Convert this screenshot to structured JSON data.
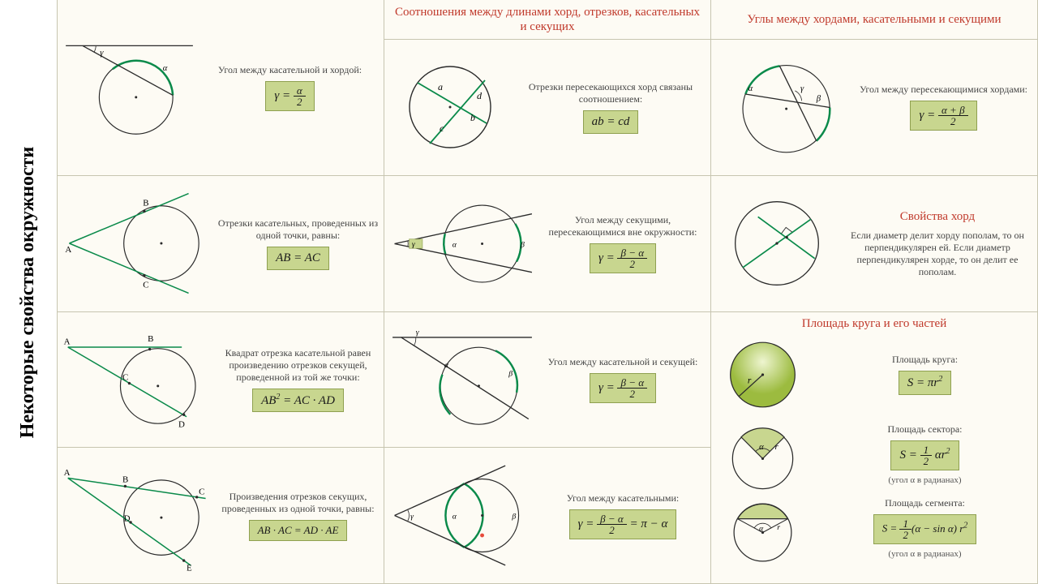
{
  "page_title": "Некоторые свойства окружности",
  "headers": {
    "col1": "Соотношения между длинами хорд, отрезков, касательных и секущих",
    "col2": "Углы между хордами, касательными и секущими",
    "col3_cell1_hdr": "",
    "chord_props": "Свойства хорд",
    "area": "Площадь круга и его частей"
  },
  "colors": {
    "accent": "#c0392b",
    "stroke": "#2a2a2a",
    "chord": "#0a8a4a",
    "fill": "#c8d68f",
    "grad1": "#d8e8a0",
    "grad2": "#8cb33a"
  },
  "r1c1": {
    "desc": "Отрезки пересекающихся хорд связаны соотношением:",
    "formula": "ab = cd",
    "labels": {
      "a": "a",
      "b": "b",
      "c": "c",
      "d": "d"
    }
  },
  "r1c2": {
    "desc": "Угол между пересекающимися хордами:",
    "f_n": "α + β",
    "f_d": "2",
    "gamma": "γ",
    "alpha": "α",
    "beta": "β"
  },
  "r1c3": {
    "desc": "Угол между касательной и хордой:",
    "f_n": "α",
    "f_d": "2",
    "gamma": "γ",
    "alpha": "α"
  },
  "r2c1": {
    "desc": "Отрезки касательных, проведенных из одной точки, равны:",
    "formula": "AB = AC",
    "A": "A",
    "B": "B",
    "C": "C"
  },
  "r2c2": {
    "desc": "Угол между секущими, пересекающимися вне окружности:",
    "f_n": "β − α",
    "f_d": "2",
    "gamma": "γ",
    "alpha": "α",
    "beta": "β"
  },
  "r2c3": {
    "desc": "Если диаметр делит хорду пополам, то он перпендикулярен ей. Если диаметр перпендикулярен хорде, то он делит ее пополам."
  },
  "r3c1": {
    "desc": "Квадрат отрезка касательной равен произведению отрезков секущей, проведенной из той же точки:",
    "formula_html": "AB<sup>2</sup> = AC · AD",
    "A": "A",
    "B": "B",
    "C": "C",
    "D": "D"
  },
  "r3c2": {
    "desc": "Угол между касательной и секущей:",
    "f_n": "β − α",
    "f_d": "2",
    "gamma": "γ",
    "alpha": "α",
    "beta": "β"
  },
  "r3c3": {
    "desc": "Площадь круга:",
    "formula_html": "S = πr<sup>2</sup>",
    "r": "r"
  },
  "r4c1": {
    "desc": "Произведения отрезков секущих, проведенных из одной точки, равны:",
    "formula": "AB · AC = AD · AE",
    "A": "A",
    "B": "B",
    "C": "C",
    "D": "D",
    "E": "E"
  },
  "r4c2": {
    "desc": "Угол между касательными:",
    "tail": " = π − α",
    "f_n": "β − α",
    "f_d": "2",
    "gamma": "γ",
    "alpha": "α",
    "beta": "β"
  },
  "r4c3_sector": {
    "desc": "Площадь сектора:",
    "r": "r",
    "alpha": "α",
    "note": "(угол α в радианах)",
    "pre": "S = ",
    "f_n": "1",
    "f_d": "2",
    "post": " αr<sup>2</sup>"
  },
  "r4c3_segment": {
    "desc": "Площадь сегмента:",
    "r": "r",
    "alpha": "α",
    "note": "(угол α в радианах)",
    "pre": "S = ",
    "f_n": "1",
    "f_d": "2",
    "post": "(α − sin α) r<sup>2</sup>"
  },
  "geom": {
    "circle_stroke_w": 1.4,
    "line_w": 1.6
  }
}
